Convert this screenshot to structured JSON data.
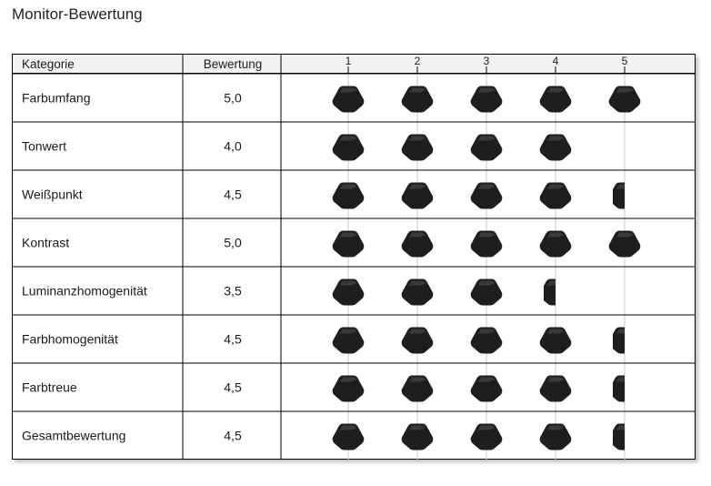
{
  "title": "Monitor-Bewertung",
  "header": {
    "category_label": "Kategorie",
    "rating_label": "Bewertung"
  },
  "colors": {
    "mark": "#1e1e1e",
    "header_bg": "#f2f2f2",
    "border": "#000000",
    "gridline": "#c8c8c8"
  },
  "chart_data": {
    "type": "table",
    "scale_ticks": [
      "1",
      "2",
      "3",
      "4",
      "5"
    ],
    "scale_max": 5,
    "categories": [
      "Farbumfang",
      "Tonwert",
      "Weißpunkt",
      "Kontrast",
      "Luminanzhomogenität",
      "Farbhomogenität",
      "Farbtreue",
      "Gesamtbewertung"
    ],
    "ratings_text": [
      "5,0",
      "4,0",
      "4,5",
      "5,0",
      "3,5",
      "4,5",
      "4,5",
      "4,5"
    ],
    "values": [
      5.0,
      4.0,
      4.5,
      5.0,
      3.5,
      4.5,
      4.5,
      4.5
    ]
  }
}
